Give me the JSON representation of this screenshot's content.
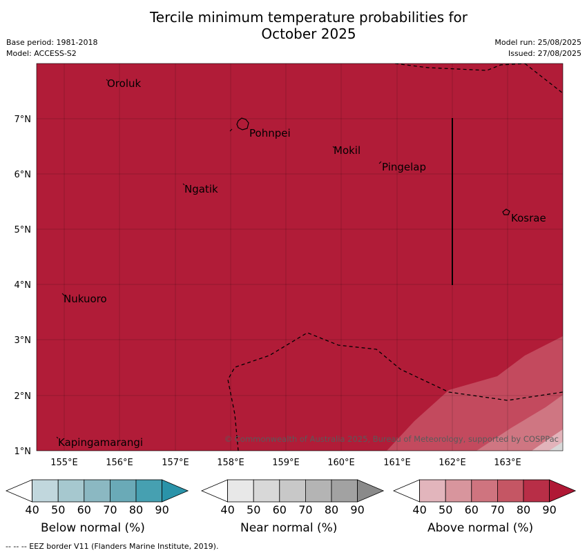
{
  "title_line1": "Tercile minimum temperature probabilities for",
  "title_line2": "October 2025",
  "meta": {
    "base_period": "Base period: 1981-2018",
    "model": "Model: ACCESS-S2",
    "model_run": "Model run: 25/08/2025",
    "issued": "Issued: 27/08/2025"
  },
  "map": {
    "fill_color": "#b11c38",
    "lon_ticks": [
      "155°E",
      "156°E",
      "157°E",
      "158°E",
      "159°E",
      "160°E",
      "161°E",
      "162°E",
      "163°E"
    ],
    "lat_ticks": [
      "1°N",
      "2°N",
      "3°N",
      "4°N",
      "5°N",
      "6°N",
      "7°N"
    ],
    "places": [
      {
        "name": "Oroluk"
      },
      {
        "name": "Pohnpei"
      },
      {
        "name": "Mokil"
      },
      {
        "name": "Pingelap"
      },
      {
        "name": "Ngatik"
      },
      {
        "name": "Kosrae"
      },
      {
        "name": "Nukuoro"
      },
      {
        "name": "Kapingamarangi"
      }
    ],
    "copyright": "© Commonwealth of Australia 2025, Bureau of Meteorology, supported by COSPPac"
  },
  "legends": [
    {
      "label": "Below normal (%)",
      "ticks": [
        "40",
        "50",
        "60",
        "70",
        "80",
        "90"
      ],
      "colors": [
        "#ffffff",
        "#c1d7dd",
        "#a6c8cf",
        "#8bb8c2",
        "#6aaab7",
        "#46a0b1",
        "#2a93a9"
      ]
    },
    {
      "label": "Near normal (%)",
      "ticks": [
        "40",
        "50",
        "60",
        "70",
        "80",
        "90"
      ],
      "colors": [
        "#ffffff",
        "#e8e8e8",
        "#d8d8d8",
        "#c8c8c8",
        "#b4b4b4",
        "#a2a2a2",
        "#8a8a8a"
      ]
    },
    {
      "label": "Above normal (%)",
      "ticks": [
        "40",
        "50",
        "60",
        "70",
        "80",
        "90"
      ],
      "colors": [
        "#ffffff",
        "#e2b5bc",
        "#d8959d",
        "#cf747f",
        "#c55664",
        "#b82e47",
        "#b01835"
      ]
    }
  ],
  "footnote": "--  --  -- EEZ border V11 (Flanders Marine Institute, 2019)."
}
